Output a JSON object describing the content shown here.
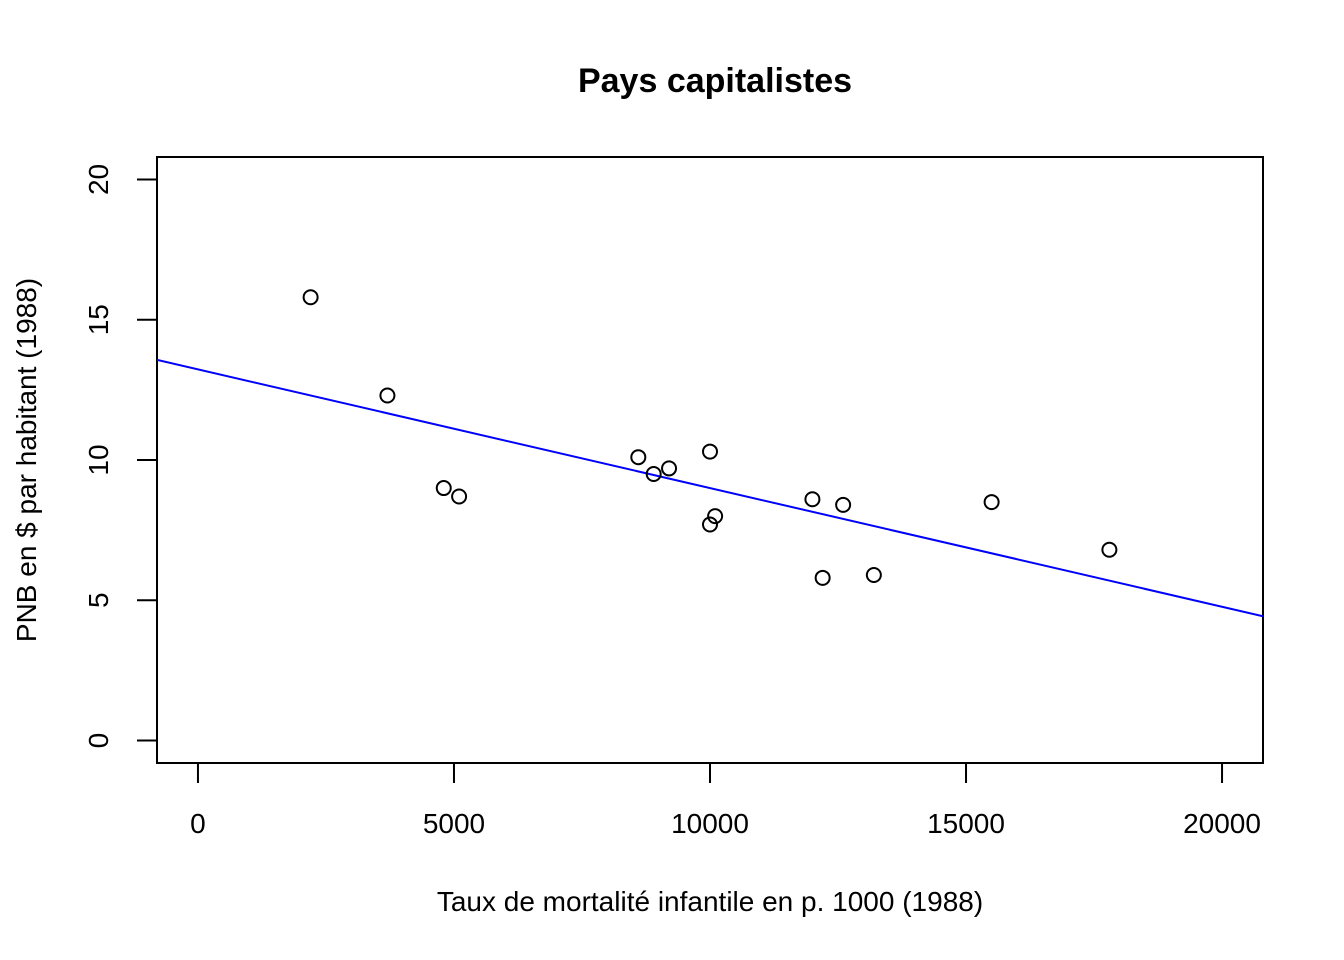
{
  "chart_data": {
    "type": "scatter",
    "title": "Pays capitalistes",
    "xlabel": "Taux de mortalité infantile en p. 1000 (1988)",
    "ylabel": "PNB en $ par habitant (1988)",
    "xlim": [
      -800,
      20800
    ],
    "ylim": [
      -0.8,
      20.8
    ],
    "xticks": [
      "0",
      "5000",
      "10000",
      "15000",
      "20000"
    ],
    "yticks": [
      "0",
      "5",
      "10",
      "15",
      "20"
    ],
    "grid": false,
    "legend": "none",
    "points": [
      {
        "x": 2200,
        "y": 15.8
      },
      {
        "x": 3700,
        "y": 12.3
      },
      {
        "x": 4800,
        "y": 9.0
      },
      {
        "x": 5100,
        "y": 8.7
      },
      {
        "x": 8600,
        "y": 10.1
      },
      {
        "x": 8900,
        "y": 9.5
      },
      {
        "x": 9200,
        "y": 9.7
      },
      {
        "x": 10000,
        "y": 10.3
      },
      {
        "x": 10000,
        "y": 7.7
      },
      {
        "x": 10100,
        "y": 8.0
      },
      {
        "x": 12000,
        "y": 8.6
      },
      {
        "x": 12200,
        "y": 5.8
      },
      {
        "x": 12600,
        "y": 8.4
      },
      {
        "x": 13200,
        "y": 5.9
      },
      {
        "x": 15500,
        "y": 8.5
      },
      {
        "x": 17800,
        "y": 6.8
      }
    ],
    "regression_line": {
      "intercept": 13.23,
      "slope": -0.000423,
      "color": "#0000ff"
    },
    "point_color": "#000000"
  }
}
